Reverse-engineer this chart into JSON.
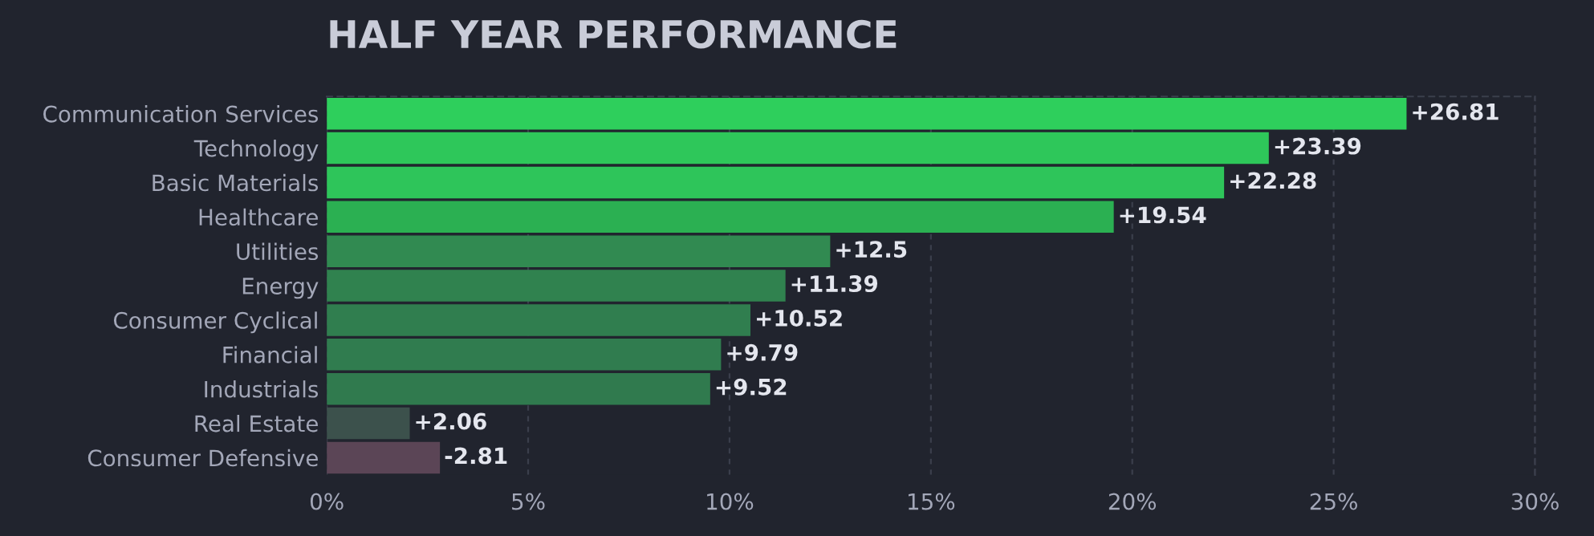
{
  "chart_data": {
    "type": "bar",
    "orientation": "horizontal",
    "title": "HALF YEAR PERFORMANCE",
    "categories": [
      "Communication Services",
      "Technology",
      "Basic Materials",
      "Healthcare",
      "Utilities",
      "Energy",
      "Consumer Cyclical",
      "Financial",
      "Industrials",
      "Real Estate",
      "Consumer Defensive"
    ],
    "values": [
      26.81,
      23.39,
      22.28,
      19.54,
      12.5,
      11.39,
      10.52,
      9.79,
      9.52,
      2.06,
      -2.81
    ],
    "base": [
      0,
      0,
      0,
      0,
      0,
      0,
      0,
      0,
      0,
      0,
      2.81
    ],
    "colors": [
      "#2ecf5c",
      "#2ec75a",
      "#2ec55a",
      "#2bb052",
      "#318a51",
      "#30824f",
      "#307e4f",
      "#307c4f",
      "#307a4e",
      "#3c514c",
      "#5b4556"
    ],
    "value_labels": [
      "+26.81",
      "+23.39",
      "+22.28",
      "+19.54",
      "+12.5",
      "+11.39",
      "+10.52",
      "+9.79",
      "+9.52",
      "+2.06",
      "-2.81"
    ],
    "xlim": [
      0,
      30
    ],
    "xticks": [
      {
        "value": 0,
        "label": "0%"
      },
      {
        "value": 5,
        "label": "5%"
      },
      {
        "value": 10,
        "label": "10%"
      },
      {
        "value": 15,
        "label": "15%"
      },
      {
        "value": 20,
        "label": "20%"
      },
      {
        "value": 25,
        "label": "25%"
      },
      {
        "value": 30,
        "label": "30%"
      }
    ],
    "grid": "x"
  }
}
